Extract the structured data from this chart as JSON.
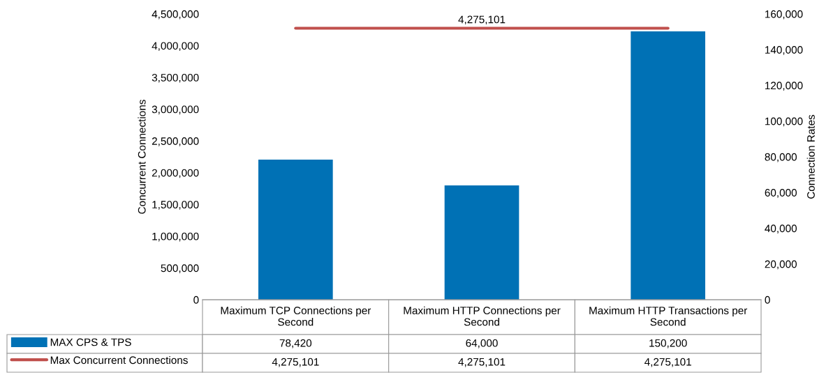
{
  "chart_data": {
    "type": "bar",
    "categories": [
      "Maximum TCP Connections per Second",
      "Maximum HTTP Connections per Second",
      "Maximum HTTP Transactions per Second"
    ],
    "series": [
      {
        "name": "MAX CPS & TPS",
        "axis": "y2",
        "color": "#0071b5",
        "values": [
          78420,
          64000,
          150200
        ],
        "value_labels": [
          "78,420",
          "64,000",
          "150,200"
        ]
      },
      {
        "name": "Max Concurrent Connections",
        "type": "line",
        "axis": "y",
        "color": "#c0504d",
        "values": [
          4275101,
          4275101,
          4275101
        ],
        "value_labels": [
          "4,275,101",
          "4,275,101",
          "4,275,101"
        ]
      }
    ],
    "ylabel": "Concurrent Connections",
    "y2label": "Connection Rates",
    "ylim": [
      0,
      4500000
    ],
    "yticks": [
      {
        "value": 0,
        "label": "0"
      },
      {
        "value": 500000,
        "label": "500,000"
      },
      {
        "value": 1000000,
        "label": "1,000,000"
      },
      {
        "value": 1500000,
        "label": "1,500,000"
      },
      {
        "value": 2000000,
        "label": "2,000,000"
      },
      {
        "value": 2500000,
        "label": "2,500,000"
      },
      {
        "value": 3000000,
        "label": "3,000,000"
      },
      {
        "value": 3500000,
        "label": "3,500,000"
      },
      {
        "value": 4000000,
        "label": "4,000,000"
      },
      {
        "value": 4500000,
        "label": "4,500,000"
      }
    ],
    "y2lim": [
      0,
      160000
    ],
    "y2ticks": [
      {
        "value": 0,
        "label": "0"
      },
      {
        "value": 20000,
        "label": "20,000"
      },
      {
        "value": 40000,
        "label": "40,000"
      },
      {
        "value": 60000,
        "label": "60,000"
      },
      {
        "value": 80000,
        "label": "80,000"
      },
      {
        "value": 100000,
        "label": "100,000"
      },
      {
        "value": 120000,
        "label": "120,000"
      },
      {
        "value": 140000,
        "label": "140,000"
      },
      {
        "value": 160000,
        "label": "160,000"
      }
    ],
    "annotations": [
      {
        "text": "4,275,101",
        "x": "Maximum HTTP Connections per Second",
        "y": 4275101
      }
    ],
    "grid": false,
    "legend": "bottom"
  }
}
